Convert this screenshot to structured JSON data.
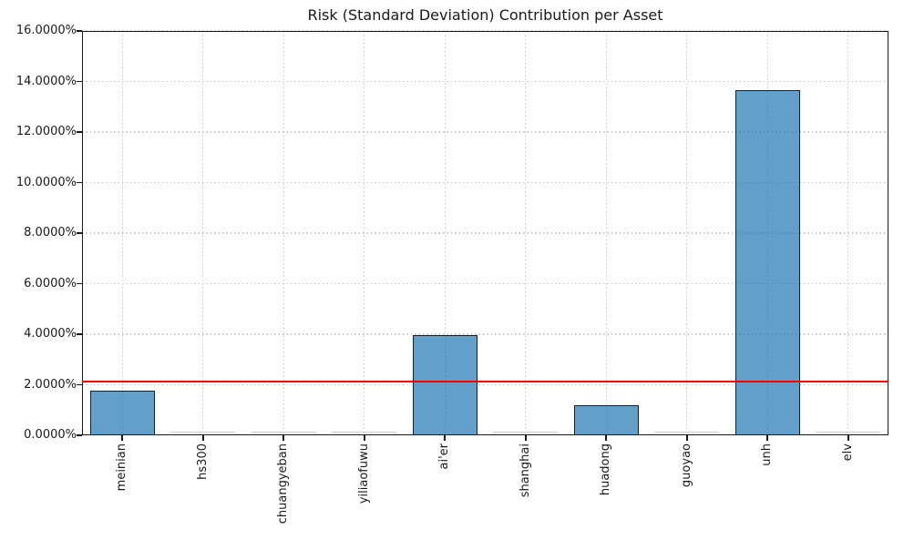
{
  "chart_data": {
    "type": "bar",
    "title": "Risk (Standard Deviation) Contribution per Asset",
    "xlabel": "",
    "ylabel": "",
    "categories": [
      "meinian",
      "hs300",
      "chuangyeban",
      "yiliaofuwu",
      "ai'er",
      "shanghai",
      "huadong",
      "guoyao",
      "unh",
      "elv"
    ],
    "values": [
      1.77,
      0.0,
      0.0,
      0.0,
      3.97,
      0.0,
      1.18,
      0.0,
      13.65,
      0.0
    ],
    "unit": "%",
    "ylim": [
      0,
      16
    ],
    "ytick_values": [
      0,
      2,
      4,
      6,
      8,
      10,
      12,
      14,
      16
    ],
    "ytick_labels": [
      "0.0000%",
      "2.0000%",
      "4.0000%",
      "6.0000%",
      "8.0000%",
      "10.0000%",
      "12.0000%",
      "14.0000%",
      "16.0000%"
    ],
    "reference_line": {
      "value": 2.12,
      "color": "#ff0000"
    },
    "grid": true,
    "grid_style": "dotted",
    "legend": "none",
    "bar_fill_color": "#62A0CB",
    "bar_edge_color": "#2e2e2e",
    "bar_width_fraction": 0.8,
    "xtick_rotation_degrees": 90
  }
}
